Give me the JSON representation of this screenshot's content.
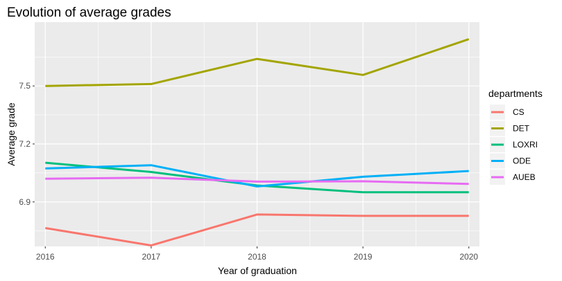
{
  "chart_data": {
    "type": "line",
    "title": "Evolution of average grades",
    "xlabel": "Year of graduation",
    "ylabel": "Average grade",
    "x": [
      2016,
      2017,
      2018,
      2019,
      2020
    ],
    "xlim": [
      2015.9,
      2020.1
    ],
    "ylim": [
      6.67,
      7.83
    ],
    "yticks": [
      6.9,
      7.2,
      7.5
    ],
    "ytick_labels": [
      "6.9",
      "7.2",
      "7.5"
    ],
    "xtick_labels": [
      "2016",
      "2017",
      "2018",
      "2019",
      "2020"
    ],
    "grid": true,
    "legend_title": "departments",
    "legend_position": "right",
    "series": [
      {
        "name": "CS",
        "color": "#F8766D",
        "values": [
          6.765,
          6.675,
          6.835,
          6.828,
          6.828
        ]
      },
      {
        "name": "DET",
        "color": "#A3A500",
        "values": [
          7.5,
          7.51,
          7.64,
          7.557,
          7.742
        ]
      },
      {
        "name": "LOXRI",
        "color": "#00BF7D",
        "values": [
          7.103,
          7.055,
          6.985,
          6.95,
          6.95
        ]
      },
      {
        "name": "ODE",
        "color": "#00B0F6",
        "values": [
          7.073,
          7.09,
          6.98,
          7.03,
          7.06
        ]
      },
      {
        "name": "AUEB",
        "color": "#E76BF3",
        "values": [
          7.02,
          7.025,
          7.005,
          7.007,
          6.993
        ]
      }
    ]
  }
}
